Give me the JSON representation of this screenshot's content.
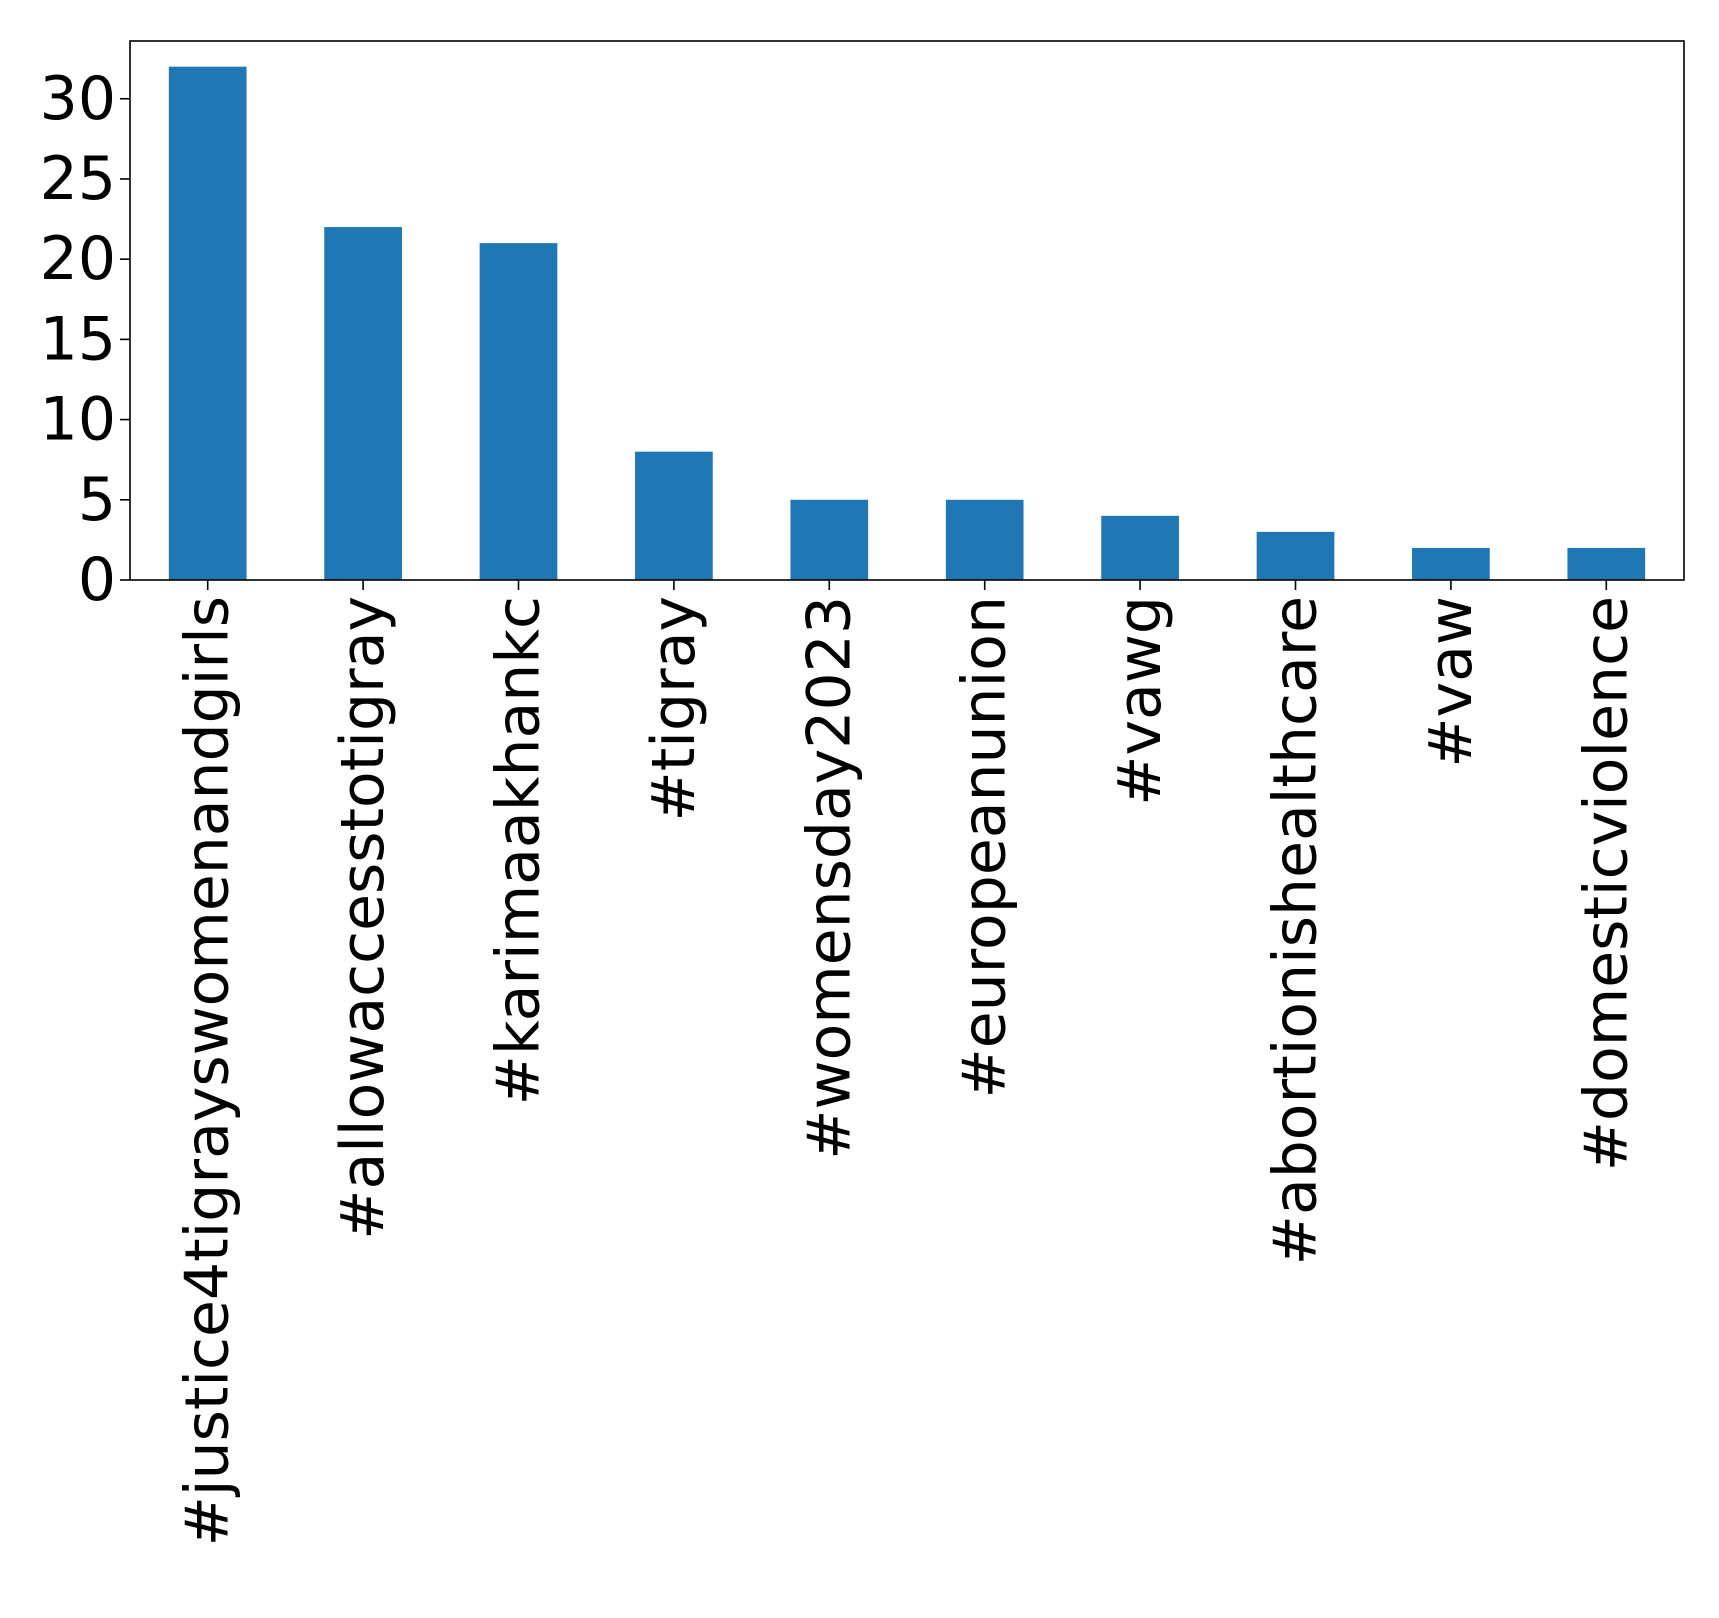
{
  "chart_data": {
    "type": "bar",
    "title": "",
    "xlabel": "",
    "ylabel": "",
    "categories": [
      "#justice4tigrayswomenandgirls",
      "#allowaccesstotigray",
      "#karimaakhankc",
      "#tigray",
      "#womensday2023",
      "#europeanunion",
      "#vawg",
      "#abortionishealthcare",
      "#vaw",
      "#domesticviolence"
    ],
    "values": [
      32,
      22,
      21,
      8,
      5,
      5,
      4,
      3,
      2,
      2
    ],
    "ylim": [
      0,
      33.6
    ],
    "yticks": [
      0,
      5,
      10,
      15,
      20,
      25,
      30
    ],
    "ytick_labels": [
      "0",
      "5",
      "10",
      "15",
      "20",
      "25",
      "30"
    ],
    "bar_color": "#1f77b4",
    "grid": false,
    "legend": "none"
  }
}
